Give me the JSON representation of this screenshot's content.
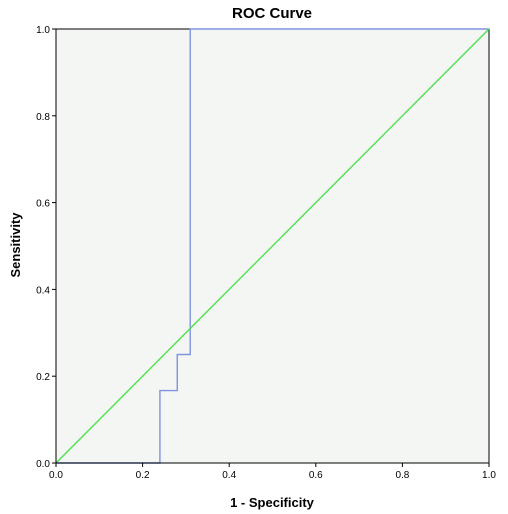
{
  "chart_data": {
    "type": "line",
    "title": "ROC Curve",
    "xlabel": "1 - Specificity",
    "ylabel": "Sensitivity",
    "xlim": [
      0,
      1
    ],
    "ylim": [
      0,
      1
    ],
    "x_ticks": [
      "0.0",
      "0.2",
      "0.4",
      "0.6",
      "0.8",
      "1.0"
    ],
    "y_ticks": [
      "0.0",
      "0.2",
      "0.4",
      "0.6",
      "0.8",
      "1.0"
    ],
    "grid": false,
    "legend": "none",
    "plot_background": "#f4f6f4",
    "series": [
      {
        "color": "#7f93e0",
        "x": [
          0,
          0.24,
          0.24,
          0.28,
          0.28,
          0.31,
          0.31,
          1.0
        ],
        "y": [
          0,
          0,
          0.167,
          0.167,
          0.25,
          0.25,
          1.0,
          1.0
        ]
      },
      {
        "color": "#4fe04f",
        "x": [
          0,
          1
        ],
        "y": [
          0,
          1
        ]
      }
    ]
  }
}
